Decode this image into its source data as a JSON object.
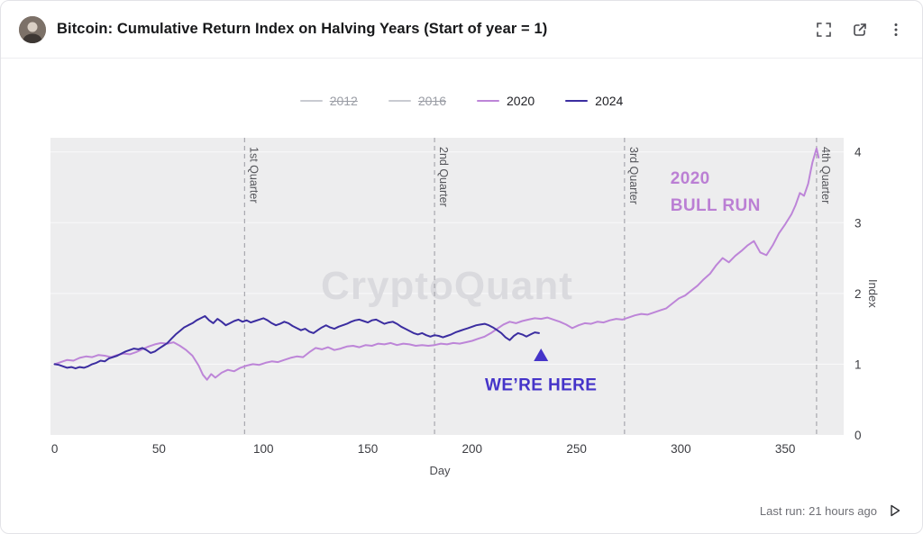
{
  "header": {
    "title": "Bitcoin: Cumulative Return Index on Halving Years (Start of year = 1)",
    "icons": [
      "fullscreen-icon",
      "open-external-icon",
      "more-options-icon"
    ]
  },
  "legend": {
    "items": [
      {
        "label": "2012",
        "color": "#c9cbd1",
        "disabled": true
      },
      {
        "label": "2016",
        "color": "#c9cbd1",
        "disabled": true
      },
      {
        "label": "2020",
        "color": "#bd85d8",
        "disabled": false
      },
      {
        "label": "2024",
        "color": "#3b2da0",
        "disabled": false
      }
    ]
  },
  "watermark": "CryptoQuant",
  "footer": {
    "last_run": "Last run: 21 hours ago",
    "play_icon": "play-icon"
  },
  "chart_data": {
    "type": "line",
    "title": "Bitcoin: Cumulative Return Index on Halving Years (Start of year = 1)",
    "xlabel": "Day",
    "ylabel": "Index",
    "xlim": [
      -2,
      378
    ],
    "ylim": [
      0,
      4.2
    ],
    "x_ticks": [
      0,
      50,
      100,
      150,
      200,
      250,
      300,
      350
    ],
    "y_ticks": [
      0,
      1,
      2,
      3,
      4
    ],
    "grid": true,
    "legend_position": "top",
    "quarter_lines": [
      {
        "day": 91,
        "label": "1st Quarter"
      },
      {
        "day": 182,
        "label": "2nd Quarter"
      },
      {
        "day": 273,
        "label": "3rd Quarter"
      },
      {
        "day": 365,
        "label": "4th Quarter"
      }
    ],
    "series": [
      {
        "name": "2012",
        "color": "#c9cbd1",
        "visible": false,
        "points": []
      },
      {
        "name": "2016",
        "color": "#c9cbd1",
        "visible": false,
        "points": []
      },
      {
        "name": "2020",
        "color": "#bd85d8",
        "visible": true,
        "points": [
          [
            0,
            1.0
          ],
          [
            3,
            1.03
          ],
          [
            6,
            1.06
          ],
          [
            9,
            1.05
          ],
          [
            12,
            1.09
          ],
          [
            15,
            1.11
          ],
          [
            18,
            1.1
          ],
          [
            21,
            1.13
          ],
          [
            24,
            1.12
          ],
          [
            27,
            1.1
          ],
          [
            30,
            1.13
          ],
          [
            33,
            1.15
          ],
          [
            36,
            1.14
          ],
          [
            39,
            1.17
          ],
          [
            42,
            1.21
          ],
          [
            45,
            1.25
          ],
          [
            48,
            1.28
          ],
          [
            51,
            1.3
          ],
          [
            54,
            1.29
          ],
          [
            57,
            1.31
          ],
          [
            60,
            1.26
          ],
          [
            63,
            1.2
          ],
          [
            66,
            1.12
          ],
          [
            69,
            0.98
          ],
          [
            71,
            0.85
          ],
          [
            73,
            0.78
          ],
          [
            75,
            0.86
          ],
          [
            77,
            0.81
          ],
          [
            80,
            0.88
          ],
          [
            83,
            0.92
          ],
          [
            86,
            0.9
          ],
          [
            89,
            0.95
          ],
          [
            92,
            0.98
          ],
          [
            95,
            1.0
          ],
          [
            98,
            0.99
          ],
          [
            101,
            1.02
          ],
          [
            104,
            1.04
          ],
          [
            107,
            1.03
          ],
          [
            110,
            1.06
          ],
          [
            113,
            1.09
          ],
          [
            116,
            1.11
          ],
          [
            119,
            1.1
          ],
          [
            122,
            1.17
          ],
          [
            125,
            1.23
          ],
          [
            128,
            1.21
          ],
          [
            131,
            1.24
          ],
          [
            134,
            1.2
          ],
          [
            137,
            1.22
          ],
          [
            140,
            1.25
          ],
          [
            143,
            1.26
          ],
          [
            146,
            1.24
          ],
          [
            149,
            1.27
          ],
          [
            152,
            1.26
          ],
          [
            155,
            1.29
          ],
          [
            158,
            1.28
          ],
          [
            161,
            1.3
          ],
          [
            164,
            1.27
          ],
          [
            167,
            1.29
          ],
          [
            170,
            1.28
          ],
          [
            173,
            1.26
          ],
          [
            176,
            1.27
          ],
          [
            179,
            1.26
          ],
          [
            182,
            1.27
          ],
          [
            185,
            1.29
          ],
          [
            188,
            1.28
          ],
          [
            191,
            1.3
          ],
          [
            194,
            1.29
          ],
          [
            197,
            1.31
          ],
          [
            200,
            1.33
          ],
          [
            203,
            1.36
          ],
          [
            206,
            1.39
          ],
          [
            209,
            1.44
          ],
          [
            212,
            1.5
          ],
          [
            215,
            1.56
          ],
          [
            218,
            1.6
          ],
          [
            221,
            1.58
          ],
          [
            224,
            1.61
          ],
          [
            227,
            1.63
          ],
          [
            230,
            1.65
          ],
          [
            233,
            1.64
          ],
          [
            236,
            1.66
          ],
          [
            239,
            1.63
          ],
          [
            242,
            1.6
          ],
          [
            245,
            1.56
          ],
          [
            248,
            1.51
          ],
          [
            251,
            1.55
          ],
          [
            254,
            1.58
          ],
          [
            257,
            1.57
          ],
          [
            260,
            1.6
          ],
          [
            263,
            1.59
          ],
          [
            266,
            1.62
          ],
          [
            269,
            1.64
          ],
          [
            272,
            1.63
          ],
          [
            275,
            1.66
          ],
          [
            278,
            1.69
          ],
          [
            281,
            1.71
          ],
          [
            284,
            1.7
          ],
          [
            287,
            1.73
          ],
          [
            290,
            1.76
          ],
          [
            293,
            1.79
          ],
          [
            296,
            1.86
          ],
          [
            299,
            1.93
          ],
          [
            302,
            1.97
          ],
          [
            305,
            2.04
          ],
          [
            308,
            2.11
          ],
          [
            311,
            2.2
          ],
          [
            314,
            2.28
          ],
          [
            317,
            2.4
          ],
          [
            320,
            2.5
          ],
          [
            323,
            2.44
          ],
          [
            326,
            2.53
          ],
          [
            329,
            2.6
          ],
          [
            332,
            2.68
          ],
          [
            335,
            2.74
          ],
          [
            338,
            2.58
          ],
          [
            341,
            2.54
          ],
          [
            344,
            2.68
          ],
          [
            347,
            2.85
          ],
          [
            350,
            2.98
          ],
          [
            353,
            3.12
          ],
          [
            355,
            3.25
          ],
          [
            357,
            3.42
          ],
          [
            359,
            3.38
          ],
          [
            361,
            3.55
          ],
          [
            362,
            3.7
          ],
          [
            363,
            3.85
          ],
          [
            364,
            3.95
          ],
          [
            365,
            4.05
          ],
          [
            366,
            3.92
          ]
        ]
      },
      {
        "name": "2024",
        "color": "#3b2da0",
        "visible": true,
        "points": [
          [
            0,
            1.0
          ],
          [
            2,
            0.99
          ],
          [
            4,
            0.97
          ],
          [
            6,
            0.95
          ],
          [
            8,
            0.96
          ],
          [
            10,
            0.94
          ],
          [
            12,
            0.96
          ],
          [
            14,
            0.95
          ],
          [
            16,
            0.97
          ],
          [
            18,
            1.0
          ],
          [
            20,
            1.02
          ],
          [
            22,
            1.05
          ],
          [
            24,
            1.04
          ],
          [
            26,
            1.08
          ],
          [
            28,
            1.1
          ],
          [
            30,
            1.12
          ],
          [
            32,
            1.15
          ],
          [
            34,
            1.18
          ],
          [
            36,
            1.2
          ],
          [
            38,
            1.22
          ],
          [
            40,
            1.21
          ],
          [
            42,
            1.23
          ],
          [
            44,
            1.2
          ],
          [
            46,
            1.16
          ],
          [
            48,
            1.18
          ],
          [
            50,
            1.22
          ],
          [
            52,
            1.26
          ],
          [
            54,
            1.3
          ],
          [
            56,
            1.36
          ],
          [
            58,
            1.42
          ],
          [
            60,
            1.47
          ],
          [
            62,
            1.52
          ],
          [
            64,
            1.55
          ],
          [
            66,
            1.58
          ],
          [
            68,
            1.62
          ],
          [
            70,
            1.65
          ],
          [
            72,
            1.68
          ],
          [
            74,
            1.62
          ],
          [
            76,
            1.58
          ],
          [
            78,
            1.64
          ],
          [
            80,
            1.6
          ],
          [
            82,
            1.55
          ],
          [
            84,
            1.58
          ],
          [
            86,
            1.61
          ],
          [
            88,
            1.63
          ],
          [
            90,
            1.6
          ],
          [
            92,
            1.62
          ],
          [
            94,
            1.59
          ],
          [
            96,
            1.61
          ],
          [
            98,
            1.63
          ],
          [
            100,
            1.65
          ],
          [
            102,
            1.62
          ],
          [
            104,
            1.58
          ],
          [
            106,
            1.55
          ],
          [
            108,
            1.57
          ],
          [
            110,
            1.6
          ],
          [
            112,
            1.58
          ],
          [
            114,
            1.54
          ],
          [
            116,
            1.51
          ],
          [
            118,
            1.48
          ],
          [
            120,
            1.5
          ],
          [
            122,
            1.46
          ],
          [
            124,
            1.44
          ],
          [
            126,
            1.48
          ],
          [
            128,
            1.52
          ],
          [
            130,
            1.55
          ],
          [
            132,
            1.52
          ],
          [
            134,
            1.5
          ],
          [
            136,
            1.53
          ],
          [
            138,
            1.55
          ],
          [
            140,
            1.57
          ],
          [
            142,
            1.6
          ],
          [
            144,
            1.62
          ],
          [
            146,
            1.63
          ],
          [
            148,
            1.61
          ],
          [
            150,
            1.59
          ],
          [
            152,
            1.62
          ],
          [
            154,
            1.63
          ],
          [
            156,
            1.6
          ],
          [
            158,
            1.57
          ],
          [
            160,
            1.59
          ],
          [
            162,
            1.6
          ],
          [
            164,
            1.57
          ],
          [
            166,
            1.53
          ],
          [
            168,
            1.5
          ],
          [
            170,
            1.47
          ],
          [
            172,
            1.44
          ],
          [
            174,
            1.42
          ],
          [
            176,
            1.44
          ],
          [
            178,
            1.41
          ],
          [
            180,
            1.39
          ],
          [
            182,
            1.41
          ],
          [
            184,
            1.4
          ],
          [
            186,
            1.38
          ],
          [
            188,
            1.4
          ],
          [
            190,
            1.42
          ],
          [
            192,
            1.45
          ],
          [
            194,
            1.47
          ],
          [
            196,
            1.49
          ],
          [
            198,
            1.51
          ],
          [
            200,
            1.53
          ],
          [
            202,
            1.55
          ],
          [
            204,
            1.56
          ],
          [
            206,
            1.57
          ],
          [
            208,
            1.55
          ],
          [
            210,
            1.52
          ],
          [
            212,
            1.48
          ],
          [
            214,
            1.44
          ],
          [
            216,
            1.38
          ],
          [
            218,
            1.34
          ],
          [
            220,
            1.4
          ],
          [
            222,
            1.44
          ],
          [
            224,
            1.42
          ],
          [
            226,
            1.39
          ],
          [
            228,
            1.42
          ],
          [
            230,
            1.45
          ],
          [
            232,
            1.44
          ]
        ]
      }
    ],
    "annotations": [
      {
        "id": "bull-run",
        "text_lines": [
          "2020",
          "BULL RUN"
        ],
        "day": 295,
        "value": 3.55,
        "color": "#bb7fd4",
        "align": "start"
      },
      {
        "id": "we-are-here",
        "text_lines": [
          "WE’RE HERE"
        ],
        "day": 233,
        "value": 0.63,
        "color": "#4534c9",
        "align": "middle"
      }
    ],
    "marker": {
      "shape": "triangle-up",
      "day": 233,
      "value": 1.12,
      "color": "#4534c9"
    }
  }
}
